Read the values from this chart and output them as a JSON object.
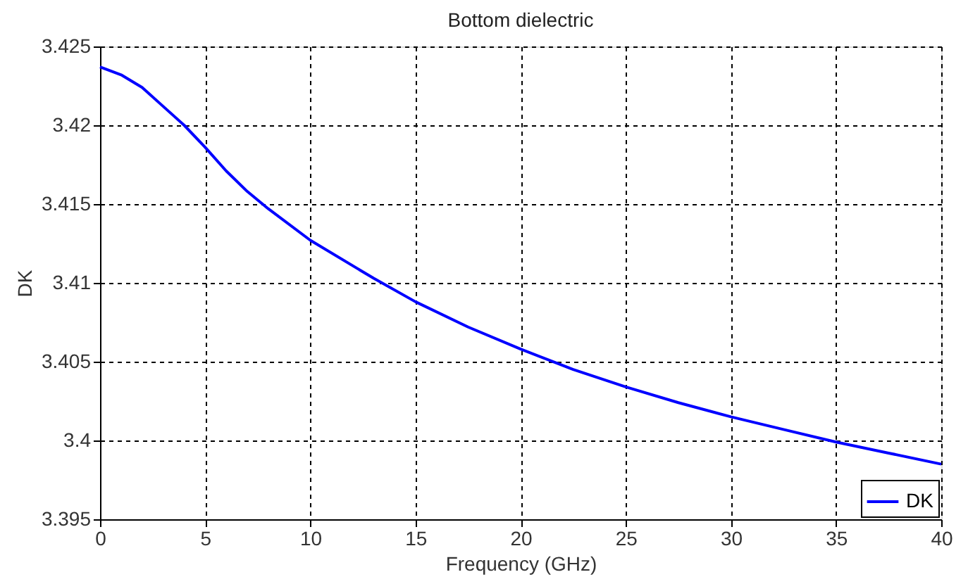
{
  "chart_data": {
    "type": "line",
    "title": "Bottom dielectric",
    "xlabel": "Frequency (GHz)",
    "ylabel": "DK",
    "xlim": [
      0,
      40
    ],
    "xticks": [
      0,
      5,
      10,
      15,
      20,
      25,
      30,
      35,
      40
    ],
    "ylim": [
      3.395,
      3.425
    ],
    "yticks": [
      3.395,
      3.4,
      3.405,
      3.41,
      3.415,
      3.42,
      3.425
    ],
    "grid": true,
    "legend": "bottom right",
    "line_style": "solid",
    "marker": "none",
    "x": [
      0,
      1,
      2,
      3,
      4,
      5,
      6,
      7,
      8,
      10,
      13,
      15,
      17.5,
      20,
      22.5,
      25,
      27.5,
      30,
      32.5,
      35,
      37.5,
      40
    ],
    "series": [
      {
        "name": "DK",
        "color": "#0000ff",
        "values": [
          3.4237,
          3.4232,
          3.4224,
          3.4212,
          3.42,
          3.4186,
          3.4171,
          3.4158,
          3.4147,
          3.4127,
          3.4103,
          3.4088,
          3.4072,
          3.4058,
          3.4045,
          3.4034,
          3.4024,
          3.4015,
          3.4007,
          3.3999,
          3.3992,
          3.3985
        ]
      }
    ]
  }
}
